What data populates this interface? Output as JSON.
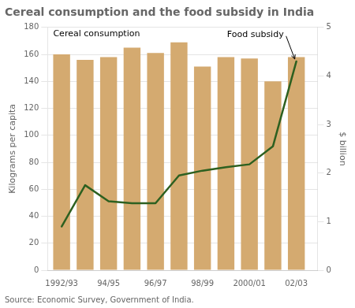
{
  "chart_data": {
    "type": "bar",
    "title": "Cereal consumption and the food subsidy in India",
    "subtitle": "Source: Economic Survey, Government of India.",
    "x": [
      1992,
      1993,
      1994,
      1995,
      1996,
      1997,
      1998,
      1999,
      2000,
      2001,
      2002
    ],
    "xlim": [
      1991.4,
      2002.9
    ],
    "xticks": [
      {
        "value": 1992,
        "label": "1992/93"
      },
      {
        "value": 1994,
        "label": "94/95"
      },
      {
        "value": 1996,
        "label": "96/97"
      },
      {
        "value": 1998,
        "label": "98/99"
      },
      {
        "value": 2000,
        "label": "2000/01"
      },
      {
        "value": 2002,
        "label": "02/03"
      }
    ],
    "ylabel": "Kilograms per capita",
    "y2label": "$ billion",
    "ylim": [
      0,
      180
    ],
    "yticks": [
      0,
      20,
      40,
      60,
      80,
      100,
      120,
      140,
      160,
      180
    ],
    "y2lim": [
      0,
      5
    ],
    "y2ticks": [
      0,
      1,
      2,
      3,
      4,
      5
    ],
    "grid": true,
    "series": [
      {
        "name": "Cereal consumption",
        "type": "bar",
        "color": "#D4AA70",
        "values": [
          160,
          156,
          158,
          165,
          161,
          169,
          151,
          158,
          157,
          140,
          158
        ]
      },
      {
        "name": "Food subsidy",
        "type": "line",
        "color": "#2D6020",
        "axis": "y2",
        "values": [
          0.9,
          1.75,
          1.42,
          1.38,
          1.38,
          1.95,
          2.05,
          2.12,
          2.18,
          2.55,
          4.3
        ]
      }
    ]
  }
}
